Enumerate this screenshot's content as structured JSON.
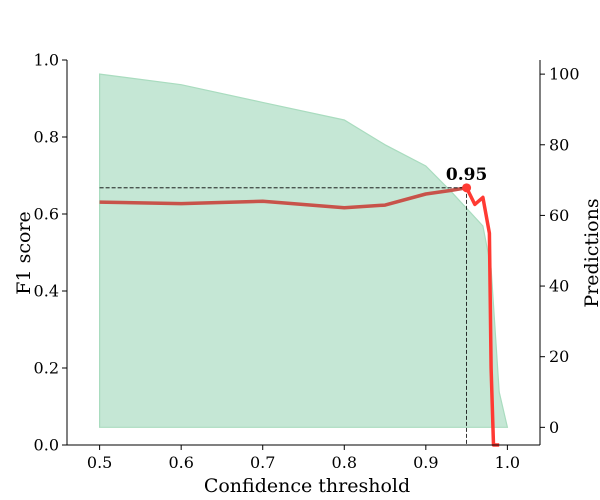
{
  "chart_data": {
    "type": "line",
    "xlabel": "Confidence threshold",
    "ylabel": "F1 score",
    "y2label": "Predictions",
    "xlim": [
      0.46,
      1.04
    ],
    "ylim": [
      0.0,
      1.0
    ],
    "y2lim": [
      -5,
      104
    ],
    "xticks": [
      "0.5",
      "0.6",
      "0.7",
      "0.8",
      "0.9",
      "1.0"
    ],
    "yticks": [
      "0.0",
      "0.2",
      "0.4",
      "0.6",
      "0.8",
      "1.0"
    ],
    "y2ticks": [
      "0",
      "20",
      "40",
      "60",
      "80",
      "100"
    ],
    "grid": false,
    "series": [
      {
        "axis": "right",
        "style": "area",
        "color": "#c5e7d5",
        "edge_color": "#a9dcbf",
        "x": [
          0.5,
          0.6,
          0.7,
          0.8,
          0.85,
          0.9,
          0.93,
          0.95,
          0.97,
          0.98,
          0.99,
          1.0
        ],
        "y": [
          100,
          97,
          92,
          87,
          80,
          74,
          67,
          62,
          57,
          45,
          10,
          0
        ]
      },
      {
        "axis": "left",
        "style": "line",
        "color": "#c8534a",
        "x": [
          0.5,
          0.6,
          0.7,
          0.8,
          0.85,
          0.9,
          0.93,
          0.95
        ],
        "y": [
          0.631,
          0.627,
          0.633,
          0.616,
          0.623,
          0.652,
          0.661,
          0.668
        ]
      },
      {
        "axis": "left",
        "style": "line",
        "color": "#ff3a33",
        "x": [
          0.95,
          0.96,
          0.97,
          0.978,
          0.98,
          0.983,
          0.99
        ],
        "y": [
          0.668,
          0.625,
          0.643,
          0.55,
          0.2,
          0.0,
          0.0
        ]
      }
    ],
    "annotation": {
      "text": "0.95",
      "x": 0.95,
      "y": 0.668,
      "color": "#ff3a33"
    }
  }
}
